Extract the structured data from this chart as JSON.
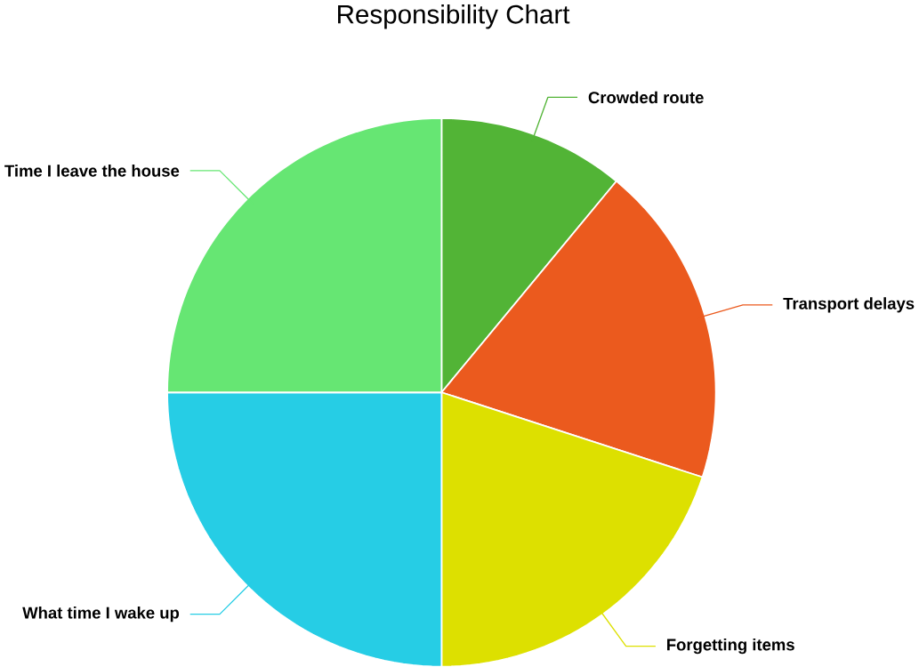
{
  "chart_data": {
    "type": "pie",
    "title": "Responsibility Chart",
    "categories": [
      "Crowded route",
      "Transport delays",
      "Forgetting items",
      "What time I wake up",
      "Time I leave the house"
    ],
    "values": [
      11,
      19,
      20,
      25,
      25
    ],
    "colors": [
      "#52b436",
      "#eb5a1e",
      "#dde000",
      "#26cde5",
      "#66e673"
    ]
  }
}
